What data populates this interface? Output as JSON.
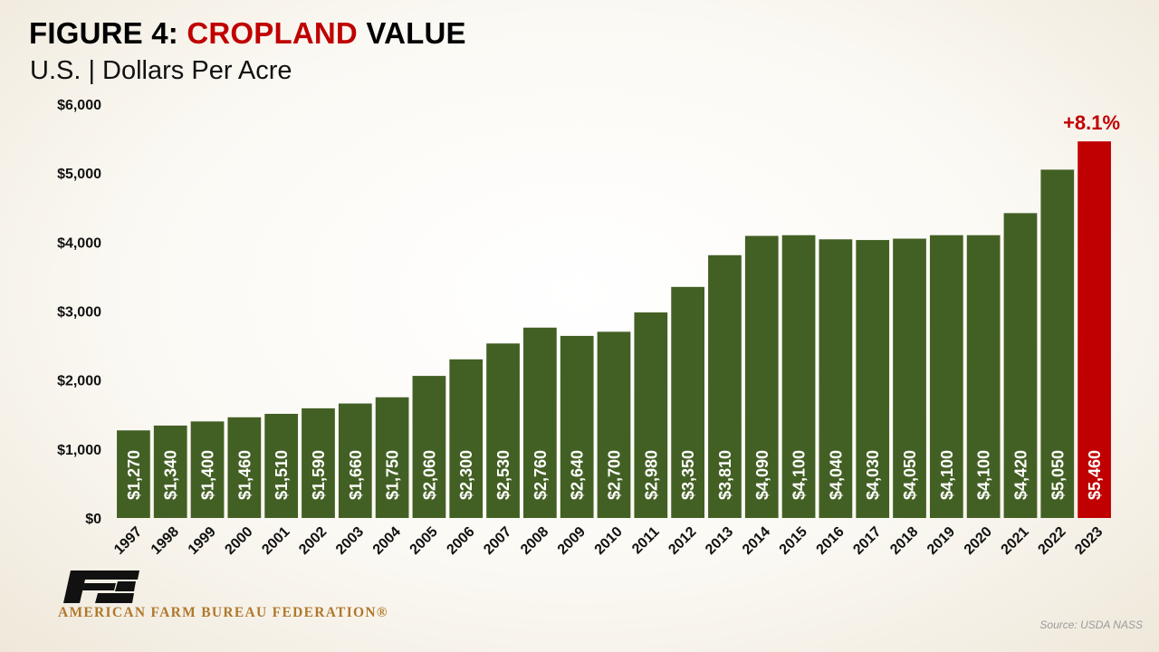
{
  "header": {
    "title_prefix": "FIGURE 4: ",
    "title_highlight": "CROPLAND",
    "title_suffix": " VALUE",
    "subtitle": "U.S. | Dollars Per Acre"
  },
  "chart_data": {
    "type": "bar",
    "title": "FIGURE 4: CROPLAND VALUE",
    "subtitle": "U.S. | Dollars Per Acre",
    "ylim": [
      0,
      6000
    ],
    "yticks": [
      0,
      1000,
      2000,
      3000,
      4000,
      5000,
      6000
    ],
    "ytick_labels": [
      "$0",
      "$1,000",
      "$2,000",
      "$3,000",
      "$4,000",
      "$5,000",
      "$6,000"
    ],
    "categories": [
      "1997",
      "1998",
      "1999",
      "2000",
      "2001",
      "2002",
      "2003",
      "2004",
      "2005",
      "2006",
      "2007",
      "2008",
      "2009",
      "2010",
      "2011",
      "2012",
      "2013",
      "2014",
      "2015",
      "2016",
      "2017",
      "2018",
      "2019",
      "2020",
      "2021",
      "2022",
      "2023"
    ],
    "values": [
      1270,
      1340,
      1400,
      1460,
      1510,
      1590,
      1660,
      1750,
      2060,
      2300,
      2530,
      2760,
      2640,
      2700,
      2980,
      3350,
      3810,
      4090,
      4100,
      4040,
      4030,
      4050,
      4100,
      4100,
      4420,
      5050,
      5460
    ],
    "value_labels": [
      "$1,270",
      "$1,340",
      "$1,400",
      "$1,460",
      "$1,510",
      "$1,590",
      "$1,660",
      "$1,750",
      "$2,060",
      "$2,300",
      "$2,530",
      "$2,760",
      "$2,640",
      "$2,700",
      "$2,980",
      "$3,350",
      "$3,810",
      "$4,090",
      "$4,100",
      "$4,040",
      "$4,030",
      "$4,050",
      "$4,100",
      "$4,100",
      "$4,420",
      "$5,050",
      "$5,460"
    ],
    "highlight_category": "2023",
    "annotation": "+8.1%",
    "grid": false,
    "colors": {
      "bar": "#436024",
      "highlight": "#c00000",
      "annotation": "#c00000"
    }
  },
  "footer": {
    "org_name": "AMERICAN FARM BUREAU FEDERATION®",
    "source": "Source: USDA NASS",
    "logo_icon": "fb-logo-icon"
  }
}
